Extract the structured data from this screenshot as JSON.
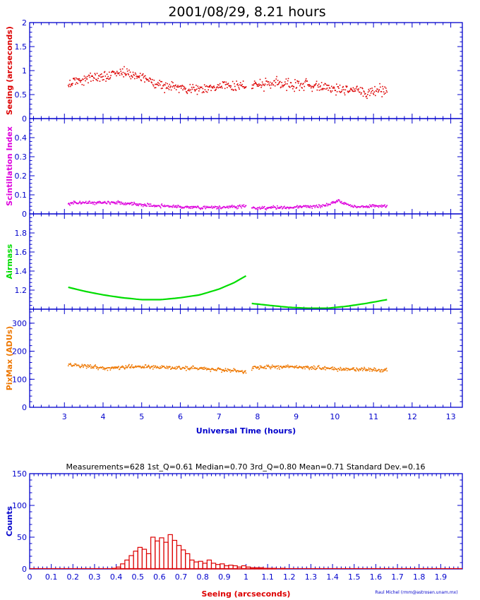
{
  "header": {
    "title": "2001/08/29, 8.21 hours",
    "stats": "Measurements=628    1st_Q=0.61   Median=0.70   3rd_Q=0.80   Mean=0.71   Standard Dev.=0.16",
    "credit": "Raul Michel (rmm@astrosen.unam.mx)"
  },
  "colors": {
    "axis": "#0000cc",
    "seeing": "#dd0000",
    "scintillation": "#dd00dd",
    "airmass": "#00dd00",
    "pixmax": "#ee7700",
    "histogram": "#dd0000"
  },
  "chart_data": [
    {
      "type": "scatter",
      "panel": "seeing",
      "ylabel": "Seeing (arcseconds)",
      "ylim": [
        0,
        2
      ],
      "yticks": [
        "0",
        "0.5",
        "1",
        "1.5",
        "2"
      ],
      "xlim": [
        2.1,
        13.3
      ],
      "x_segments": [
        [
          3.1,
          7.7
        ],
        [
          7.85,
          11.35
        ]
      ],
      "trend": [
        [
          3.1,
          0.72
        ],
        [
          3.6,
          0.85
        ],
        [
          4.0,
          0.86
        ],
        [
          4.4,
          0.98
        ],
        [
          5.0,
          0.85
        ],
        [
          5.6,
          0.68
        ],
        [
          6.2,
          0.62
        ],
        [
          7.0,
          0.66
        ],
        [
          7.7,
          0.7
        ],
        [
          7.9,
          0.7
        ],
        [
          8.5,
          0.72
        ],
        [
          9.2,
          0.7
        ],
        [
          10.0,
          0.62
        ],
        [
          10.8,
          0.55
        ],
        [
          11.35,
          0.58
        ]
      ],
      "noise": 0.08,
      "points_per_hour": 70
    },
    {
      "type": "scatter",
      "panel": "scintillation",
      "ylabel": "Scintillation Index",
      "ylim": [
        0,
        0.5
      ],
      "yticks": [
        "0",
        "0.1",
        "0.2",
        "0.3",
        "0.4"
      ],
      "xlim": [
        2.1,
        13.3
      ],
      "x_segments": [
        [
          3.1,
          7.7
        ],
        [
          7.85,
          11.35
        ]
      ],
      "trend": [
        [
          3.1,
          0.058
        ],
        [
          4.3,
          0.06
        ],
        [
          5.0,
          0.048
        ],
        [
          6.0,
          0.036
        ],
        [
          7.0,
          0.034
        ],
        [
          7.7,
          0.04
        ],
        [
          7.9,
          0.03
        ],
        [
          9.0,
          0.036
        ],
        [
          9.7,
          0.04
        ],
        [
          10.1,
          0.07
        ],
        [
          10.5,
          0.036
        ],
        [
          11.35,
          0.042
        ]
      ],
      "noise": 0.006,
      "points_per_hour": 70
    },
    {
      "type": "line",
      "panel": "airmass",
      "ylabel": "Airmass",
      "ylim": [
        1,
        2
      ],
      "yticks": [
        "1.2",
        "1.4",
        "1.6",
        "1.8"
      ],
      "xlim": [
        2.1,
        13.3
      ],
      "series": [
        {
          "x": [
            3.1,
            3.5,
            4.0,
            4.5,
            5.0,
            5.5,
            6.0,
            6.5,
            7.0,
            7.4,
            7.7
          ],
          "values": [
            1.23,
            1.19,
            1.15,
            1.12,
            1.1,
            1.1,
            1.12,
            1.15,
            1.21,
            1.28,
            1.35
          ]
        },
        {
          "x": [
            7.85,
            8.3,
            8.8,
            9.3,
            9.8,
            10.3,
            10.8,
            11.35
          ],
          "values": [
            1.06,
            1.04,
            1.02,
            1.01,
            1.01,
            1.03,
            1.06,
            1.1
          ]
        }
      ]
    },
    {
      "type": "scatter",
      "panel": "pixmax",
      "ylabel": "PixMax (ADUs)",
      "ylim": [
        0,
        350
      ],
      "yticks": [
        "0",
        "100",
        "200",
        "300"
      ],
      "xlabel": "Universal Time (hours)",
      "xlim": [
        2.1,
        13.3
      ],
      "xticks": [
        "3",
        "4",
        "5",
        "6",
        "7",
        "8",
        "9",
        "10",
        "11",
        "12",
        "13"
      ],
      "x_segments": [
        [
          3.1,
          7.7
        ],
        [
          7.85,
          11.35
        ]
      ],
      "trend": [
        [
          3.1,
          152
        ],
        [
          4.0,
          140
        ],
        [
          5.0,
          146
        ],
        [
          6.0,
          140
        ],
        [
          7.0,
          135
        ],
        [
          7.7,
          128
        ],
        [
          7.9,
          142
        ],
        [
          9.0,
          145
        ],
        [
          10.0,
          137
        ],
        [
          11.35,
          132
        ]
      ],
      "noise": 5,
      "points_per_hour": 70
    },
    {
      "type": "bar",
      "panel": "histogram",
      "ylabel": "Counts",
      "xlabel": "Seeing (arcseconds)",
      "ylim": [
        0,
        150
      ],
      "yticks": [
        "0",
        "50",
        "100",
        "150"
      ],
      "xlim": [
        0,
        2
      ],
      "xticks": [
        "0",
        "0.1",
        "0.2",
        "0.3",
        "0.4",
        "0.5",
        "0.6",
        "0.7",
        "0.8",
        "0.9",
        "1",
        "1.1",
        "1.2",
        "1.3",
        "1.4",
        "1.5",
        "1.6",
        "1.7",
        "1.8",
        "1.9"
      ],
      "bin_width": 0.02,
      "bin_start": 0.38,
      "values": [
        1,
        3,
        8,
        14,
        21,
        28,
        34,
        31,
        24,
        50,
        44,
        49,
        42,
        54,
        45,
        37,
        30,
        24,
        14,
        11,
        12,
        9,
        14,
        9,
        7,
        8,
        5,
        6,
        5,
        3,
        5,
        3,
        2,
        2,
        2,
        1,
        1,
        1,
        0,
        1
      ]
    }
  ]
}
